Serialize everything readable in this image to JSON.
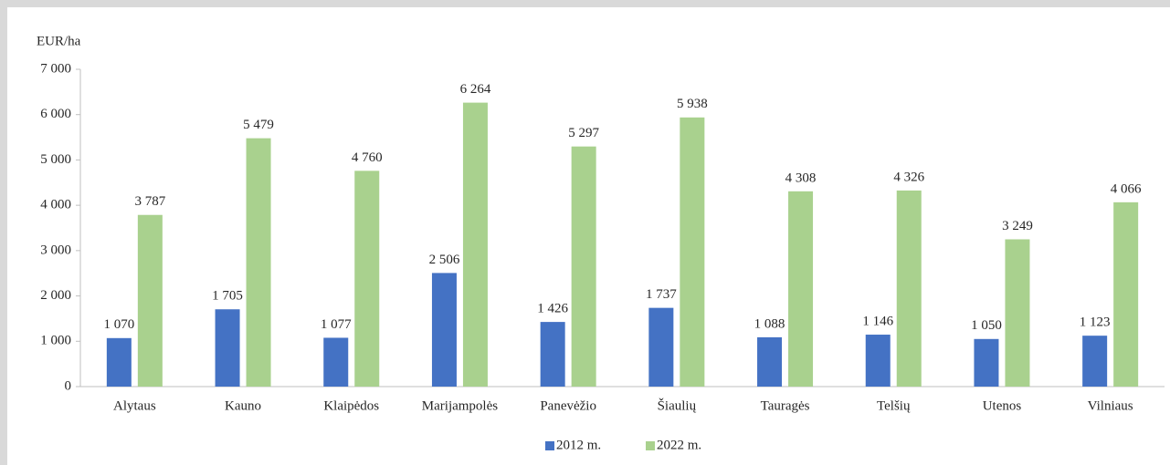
{
  "chart_data": {
    "type": "bar",
    "y_label": "EUR/ha",
    "categories": [
      "Alytaus",
      "Kauno",
      "Klaipėdos",
      "Marijampolės",
      "Panevėžio",
      "Šiaulių",
      "Tauragės",
      "Telšių",
      "Utenos",
      "Vilniaus"
    ],
    "series": [
      {
        "name": "2012 m.",
        "color": "#4472c4",
        "values": [
          1070,
          1705,
          1077,
          2506,
          1426,
          1737,
          1088,
          1146,
          1050,
          1123
        ],
        "value_labels": [
          "1 070",
          "1 705",
          "1 077",
          "2 506",
          "1 426",
          "1 737",
          "1 088",
          "1 146",
          "1 050",
          "1 123"
        ]
      },
      {
        "name": "2022 m.",
        "color": "#a9d18e",
        "values": [
          3787,
          5479,
          4760,
          6264,
          5297,
          5938,
          4308,
          4326,
          3249,
          4066
        ],
        "value_labels": [
          "3 787",
          "5 479",
          "4 760",
          "6 264",
          "5 297",
          "5 938",
          "4 308",
          "4 326",
          "3 249",
          "4 066"
        ]
      }
    ],
    "ylim": [
      0,
      7000
    ],
    "yticks": [
      0,
      {
        "value": 1000,
        "label": "1 000"
      },
      {
        "value": 2000,
        "label": "2 000"
      },
      {
        "value": 3000,
        "label": "3 000"
      },
      {
        "value": 4000,
        "label": "4 000"
      },
      {
        "value": 5000,
        "label": "5 000"
      },
      {
        "value": 6000,
        "label": "6 000"
      },
      {
        "value": 7000,
        "label": "7 000"
      }
    ],
    "grid": false,
    "legend": "bottom"
  }
}
